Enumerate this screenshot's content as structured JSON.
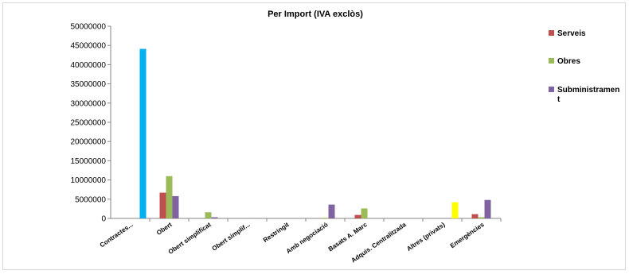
{
  "chart_data": {
    "type": "bar",
    "title": "Per Import (IVA exclòs)",
    "xlabel": "",
    "ylabel": "",
    "ylim": [
      0,
      50000000
    ],
    "yticks": [
      "0",
      "5000000",
      "10000000",
      "15000000",
      "20000000",
      "25000000",
      "30000000",
      "35000000",
      "40000000",
      "45000000",
      "50000000"
    ],
    "grid": false,
    "legend_position": "right",
    "categories": [
      "Contractes...",
      "Obert",
      "Obert simplificat",
      "Obert simplif...",
      "Restringit",
      "Amb negociació",
      "Basats A. Marc",
      "Adquis. Centralitzada",
      "Altres (privats)",
      "Emergències"
    ],
    "series": [
      {
        "name": "Serveis",
        "color": "#c0504d",
        "values": [
          0,
          6700000,
          0,
          0,
          0,
          0,
          900000,
          0,
          0,
          1100000
        ]
      },
      {
        "name": "Obres",
        "color": "#9bbb59",
        "values": [
          0,
          11000000,
          1600000,
          0,
          0,
          150000,
          2600000,
          0,
          0,
          300000
        ]
      },
      {
        "name": "Subministrament",
        "color": "#8064a2",
        "values": [
          0,
          5800000,
          300000,
          50000,
          0,
          3600000,
          0,
          0,
          0,
          4800000
        ]
      }
    ],
    "extra_bars": [
      {
        "category": "Contractes...",
        "color": "#00b0f0",
        "value": 44100000
      },
      {
        "category": "Altres (privats)",
        "color": "#ffff00",
        "value": 4200000
      }
    ]
  }
}
